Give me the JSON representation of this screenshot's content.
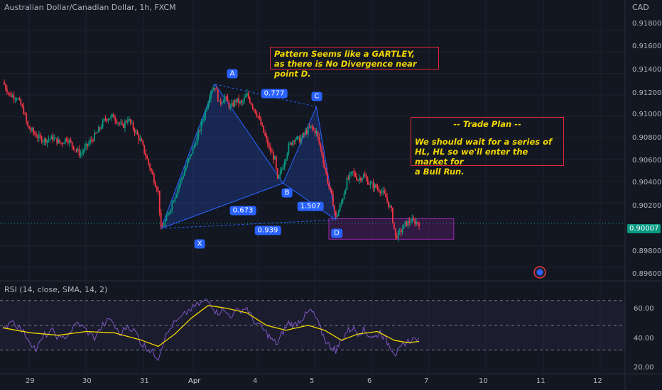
{
  "header": {
    "title": "Australian Dollar/Canadian Dollar, 1h, FXCM",
    "currency": "CAD"
  },
  "price_axis": {
    "ticks": [
      "0.91800",
      "0.91600",
      "0.91400",
      "0.91200",
      "0.91000",
      "0.90800",
      "0.90600",
      "0.90400",
      "0.90200",
      "0.89800",
      "0.89600"
    ],
    "current_price": "0.90007"
  },
  "rsi_panel": {
    "label": "RSI (14, close, SMA, 14, 2)",
    "ticks": [
      "60.00",
      "40.00",
      "20.00"
    ]
  },
  "time_axis": {
    "ticks": [
      "29",
      "30",
      "31",
      "Apr",
      "4",
      "5",
      "6",
      "7",
      "10",
      "11",
      "12"
    ]
  },
  "pattern": {
    "points": [
      "X",
      "A",
      "B",
      "C",
      "D"
    ],
    "ratios": [
      "0.777",
      "0.673",
      "1.507",
      "0.939"
    ]
  },
  "notes": {
    "gartley_line1": "Pattern Seems like a GARTLEY,",
    "gartley_line2": "as there is No Divergence near point D.",
    "plan_title": "-- Trade Plan --",
    "plan_line1": "We should wait for a series of",
    "plan_line2": "HL, HL so we'll enter the market for",
    "plan_line3": "a Bull Run."
  },
  "colors": {
    "background": "#131722",
    "bull": "#089981",
    "bear": "#f23645",
    "pattern": "#2962ff",
    "note_border": "#e0263a",
    "note_text": "#f2d600",
    "zone": "#9c27b0",
    "rsi_line": "#7e57c2",
    "rsi_ma": "#f2d600"
  },
  "chart_data": {
    "type": "candlestick",
    "instrument": "AUDCAD",
    "timeframe": "1h",
    "y_range": [
      0.895,
      0.9195
    ],
    "path": [
      [
        0,
        0.9132
      ],
      [
        5,
        0.912
      ],
      [
        10,
        0.9118
      ],
      [
        15,
        0.9105
      ],
      [
        18,
        0.909
      ],
      [
        22,
        0.9085
      ],
      [
        26,
        0.908
      ],
      [
        30,
        0.9078
      ],
      [
        36,
        0.908
      ],
      [
        42,
        0.9075
      ],
      [
        46,
        0.908
      ],
      [
        52,
        0.907
      ],
      [
        56,
        0.9065
      ],
      [
        62,
        0.9075
      ],
      [
        68,
        0.9085
      ],
      [
        74,
        0.9098
      ],
      [
        80,
        0.91
      ],
      [
        86,
        0.909
      ],
      [
        90,
        0.9098
      ],
      [
        96,
        0.9085
      ],
      [
        100,
        0.9075
      ],
      [
        104,
        0.906
      ],
      [
        108,
        0.9045
      ],
      [
        112,
        0.903
      ],
      [
        114,
        0.8995
      ],
      [
        118,
        0.9005
      ],
      [
        122,
        0.902
      ],
      [
        128,
        0.904
      ],
      [
        134,
        0.906
      ],
      [
        140,
        0.908
      ],
      [
        146,
        0.9105
      ],
      [
        150,
        0.9125
      ],
      [
        153,
        0.9128
      ],
      [
        156,
        0.9112
      ],
      [
        160,
        0.9118
      ],
      [
        164,
        0.9108
      ],
      [
        168,
        0.9115
      ],
      [
        172,
        0.9112
      ],
      [
        176,
        0.912
      ],
      [
        180,
        0.911
      ],
      [
        184,
        0.91
      ],
      [
        188,
        0.9085
      ],
      [
        192,
        0.907
      ],
      [
        196,
        0.906
      ],
      [
        198,
        0.904
      ],
      [
        202,
        0.9055
      ],
      [
        206,
        0.9072
      ],
      [
        210,
        0.908
      ],
      [
        214,
        0.9078
      ],
      [
        218,
        0.9085
      ],
      [
        222,
        0.909
      ],
      [
        226,
        0.9085
      ],
      [
        230,
        0.9065
      ],
      [
        234,
        0.904
      ],
      [
        238,
        0.902
      ],
      [
        240,
        0.9005
      ],
      [
        244,
        0.902
      ],
      [
        248,
        0.904
      ],
      [
        252,
        0.9048
      ],
      [
        256,
        0.9042
      ],
      [
        260,
        0.9045
      ],
      [
        264,
        0.9038
      ],
      [
        268,
        0.9035
      ],
      [
        272,
        0.9032
      ],
      [
        276,
        0.9025
      ],
      [
        280,
        0.9012
      ],
      [
        283,
        0.8988
      ],
      [
        286,
        0.8992
      ],
      [
        290,
        0.9
      ],
      [
        294,
        0.9003
      ],
      [
        300,
        0.9001
      ]
    ],
    "rsi": [
      [
        0,
        45
      ],
      [
        6,
        55
      ],
      [
        12,
        48
      ],
      [
        18,
        40
      ],
      [
        24,
        30
      ],
      [
        30,
        42
      ],
      [
        36,
        45
      ],
      [
        42,
        38
      ],
      [
        48,
        44
      ],
      [
        54,
        52
      ],
      [
        60,
        46
      ],
      [
        66,
        40
      ],
      [
        72,
        50
      ],
      [
        78,
        55
      ],
      [
        84,
        42
      ],
      [
        90,
        50
      ],
      [
        96,
        44
      ],
      [
        100,
        35
      ],
      [
        104,
        32
      ],
      [
        108,
        28
      ],
      [
        112,
        24
      ],
      [
        116,
        38
      ],
      [
        122,
        50
      ],
      [
        128,
        55
      ],
      [
        134,
        62
      ],
      [
        140,
        66
      ],
      [
        146,
        70
      ],
      [
        150,
        68
      ],
      [
        154,
        60
      ],
      [
        158,
        62
      ],
      [
        164,
        58
      ],
      [
        170,
        62
      ],
      [
        176,
        64
      ],
      [
        180,
        55
      ],
      [
        186,
        48
      ],
      [
        190,
        44
      ],
      [
        194,
        38
      ],
      [
        198,
        35
      ],
      [
        202,
        45
      ],
      [
        206,
        52
      ],
      [
        210,
        50
      ],
      [
        214,
        54
      ],
      [
        218,
        58
      ],
      [
        222,
        62
      ],
      [
        226,
        55
      ],
      [
        230,
        44
      ],
      [
        234,
        35
      ],
      [
        238,
        32
      ],
      [
        240,
        30
      ],
      [
        244,
        38
      ],
      [
        248,
        45
      ],
      [
        252,
        48
      ],
      [
        256,
        44
      ],
      [
        260,
        46
      ],
      [
        264,
        42
      ],
      [
        268,
        40
      ],
      [
        272,
        45
      ],
      [
        276,
        38
      ],
      [
        280,
        32
      ],
      [
        283,
        27
      ],
      [
        286,
        30
      ],
      [
        290,
        36
      ],
      [
        294,
        38
      ],
      [
        300,
        40
      ]
    ],
    "rsi_ma": [
      [
        0,
        48
      ],
      [
        20,
        44
      ],
      [
        40,
        42
      ],
      [
        60,
        45
      ],
      [
        80,
        44
      ],
      [
        100,
        38
      ],
      [
        112,
        33
      ],
      [
        124,
        43
      ],
      [
        136,
        56
      ],
      [
        148,
        66
      ],
      [
        160,
        64
      ],
      [
        176,
        60
      ],
      [
        190,
        50
      ],
      [
        204,
        46
      ],
      [
        220,
        50
      ],
      [
        232,
        46
      ],
      [
        244,
        38
      ],
      [
        256,
        43
      ],
      [
        270,
        45
      ],
      [
        282,
        38
      ],
      [
        292,
        36
      ],
      [
        300,
        37
      ]
    ],
    "harmonic": {
      "X": [
        114,
        0.8996
      ],
      "A": [
        153,
        0.913
      ],
      "B": [
        202,
        0.9038
      ],
      "C": [
        226,
        0.9109
      ],
      "D": [
        240,
        0.9004
      ]
    },
    "zone": {
      "x0": 236,
      "x1": 326,
      "y_top": 0.9005,
      "y_bot": 0.8986
    },
    "rsi_range": [
      15,
      75
    ]
  }
}
